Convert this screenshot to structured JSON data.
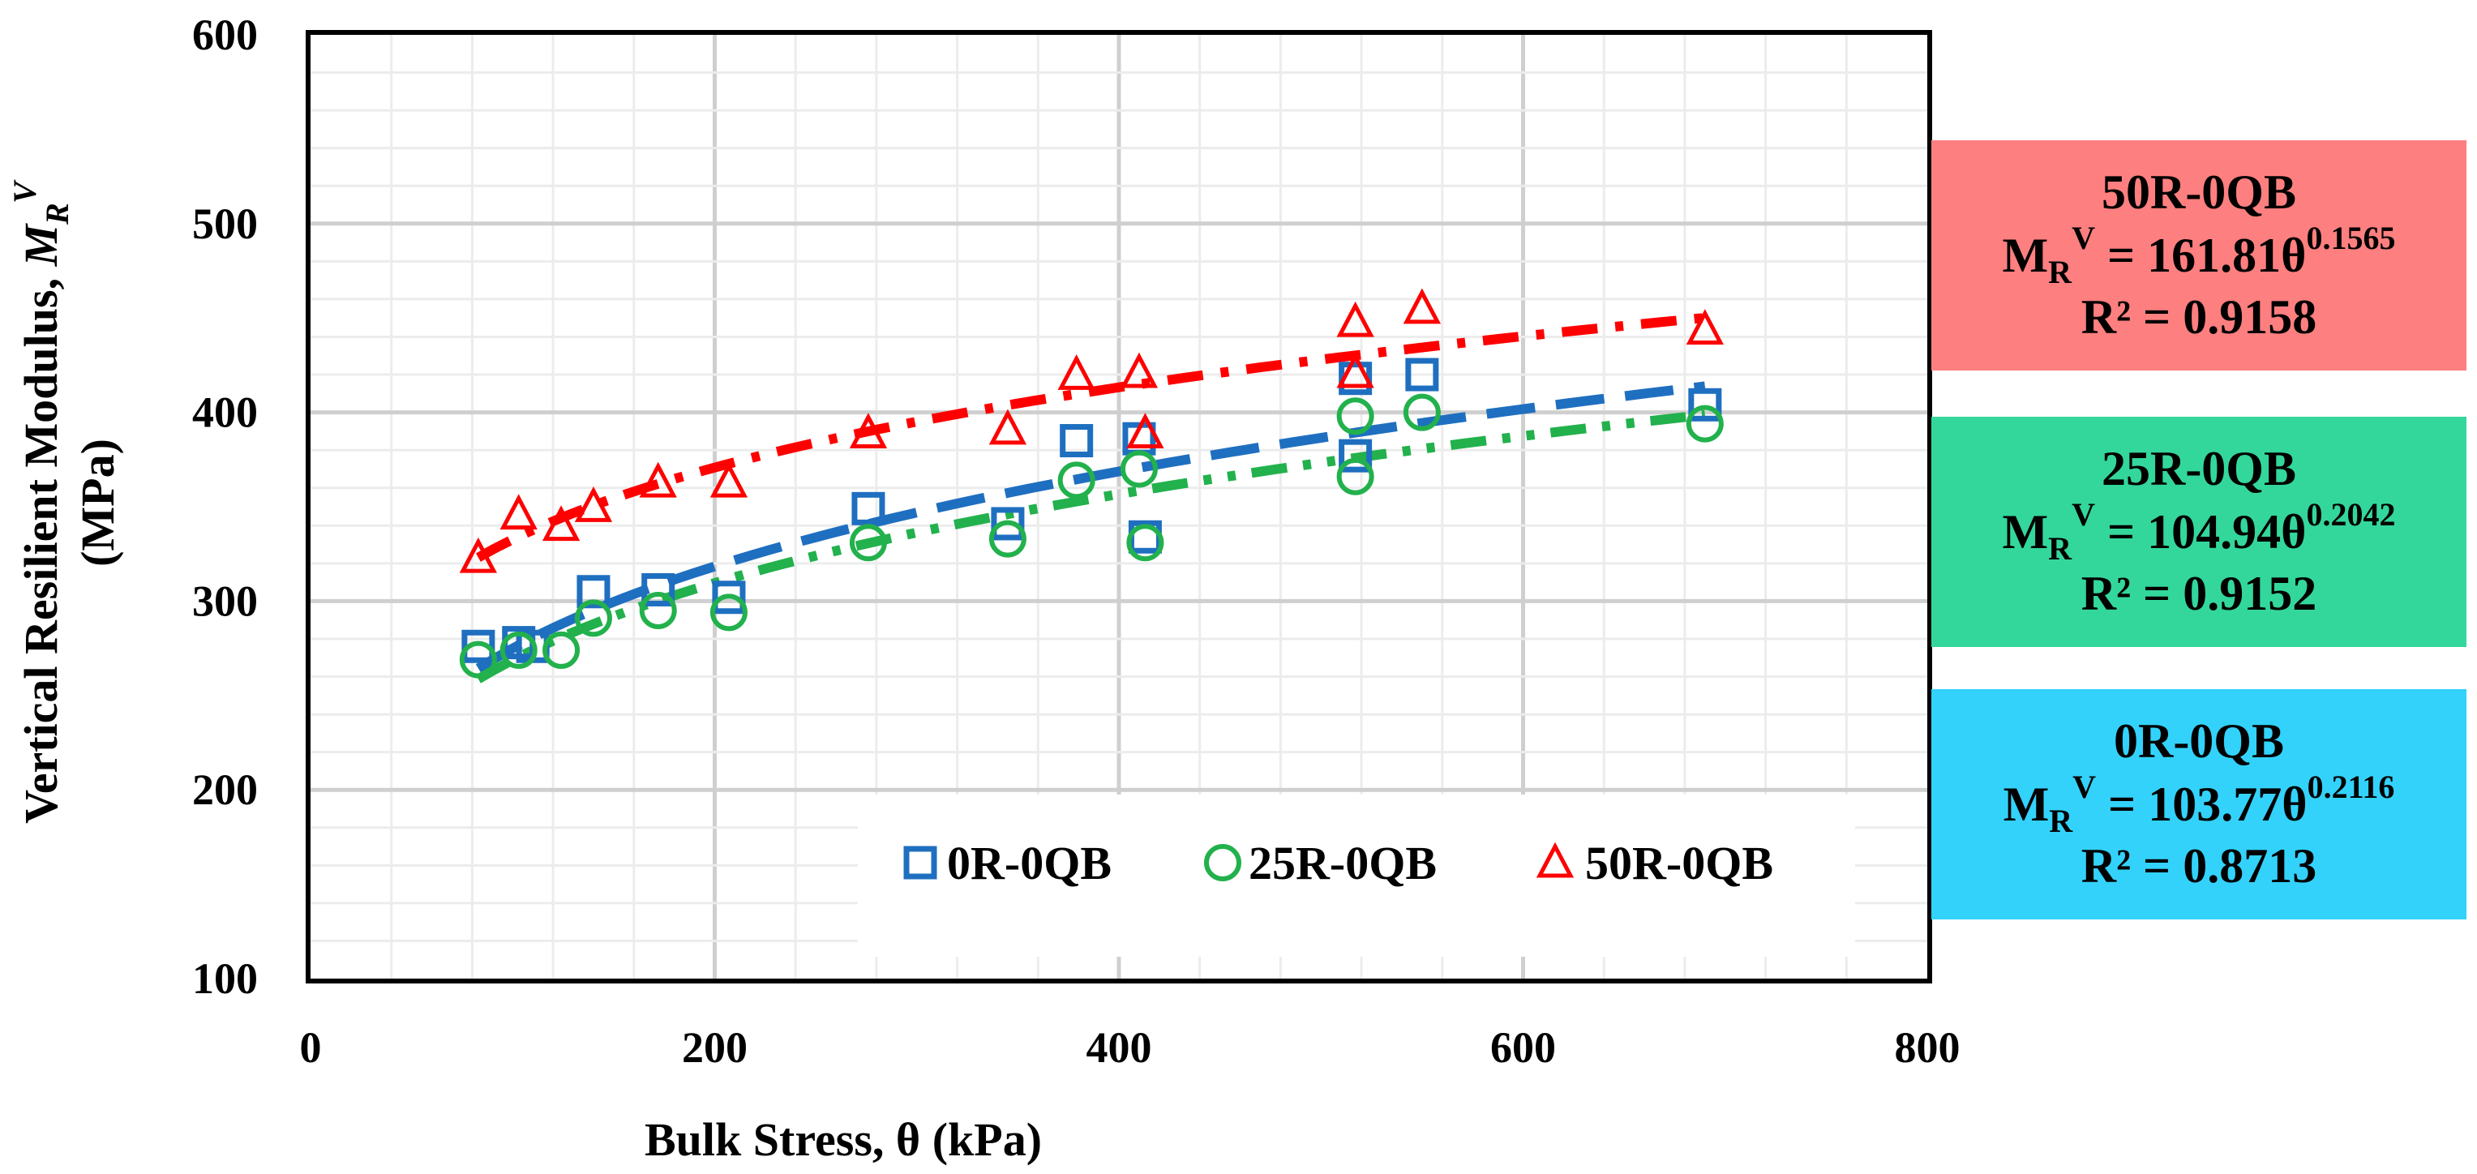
{
  "chart_data": {
    "type": "scatter",
    "xlabel": "Bulk Stress, θ (kPa)",
    "ylabel_main": "Vertical Resilient Modulus, ",
    "ylabel_symbol": "M",
    "ylabel_sub": "R",
    "ylabel_sup": "V",
    "ylabel_units": "(MPa)",
    "xlim": [
      0,
      800
    ],
    "ylim": [
      100,
      600
    ],
    "xticks": [
      0,
      200,
      400,
      600,
      800
    ],
    "yticks": [
      100,
      200,
      300,
      400,
      500,
      600
    ],
    "x_minor_step": 40,
    "y_minor_step": 20,
    "legend_position": "bottom-center",
    "series": [
      {
        "name": "0R-0QB",
        "color": "#1f6fc0",
        "marker": "square",
        "trend": {
          "a": 103.77,
          "b": 0.2116,
          "dash": "dash",
          "xmin": 83,
          "xmax": 690
        },
        "points": [
          [
            83,
            276
          ],
          [
            103,
            278
          ],
          [
            110,
            276
          ],
          [
            140,
            305
          ],
          [
            172,
            306
          ],
          [
            207,
            302
          ],
          [
            276,
            349
          ],
          [
            345,
            341
          ],
          [
            379,
            385
          ],
          [
            410,
            386
          ],
          [
            413,
            334
          ],
          [
            517,
            418
          ],
          [
            517,
            377
          ],
          [
            550,
            420
          ],
          [
            690,
            404
          ]
        ]
      },
      {
        "name": "25R-0QB",
        "color": "#22b14c",
        "marker": "circle",
        "trend": {
          "a": 104.94,
          "b": 0.2042,
          "dash": "dashdotdot",
          "xmin": 83,
          "xmax": 690
        },
        "points": [
          [
            83,
            269
          ],
          [
            103,
            274
          ],
          [
            124,
            274
          ],
          [
            140,
            291
          ],
          [
            172,
            295
          ],
          [
            207,
            294
          ],
          [
            276,
            331
          ],
          [
            345,
            333
          ],
          [
            379,
            364
          ],
          [
            410,
            370
          ],
          [
            413,
            331
          ],
          [
            517,
            398
          ],
          [
            517,
            366
          ],
          [
            550,
            400
          ],
          [
            690,
            394
          ]
        ]
      },
      {
        "name": "50R-0QB",
        "color": "#ff0000",
        "marker": "triangle",
        "trend": {
          "a": 161.81,
          "b": 0.1565,
          "dash": "dashdot",
          "xmin": 83,
          "xmax": 690
        },
        "points": [
          [
            83,
            322
          ],
          [
            103,
            345
          ],
          [
            124,
            339
          ],
          [
            140,
            349
          ],
          [
            172,
            362
          ],
          [
            207,
            362
          ],
          [
            276,
            388
          ],
          [
            345,
            390
          ],
          [
            379,
            419
          ],
          [
            410,
            420
          ],
          [
            413,
            388
          ],
          [
            517,
            447
          ],
          [
            517,
            420
          ],
          [
            550,
            454
          ],
          [
            690,
            443
          ]
        ]
      }
    ]
  },
  "equations": [
    {
      "name": "50R-0QB",
      "lhs": "M",
      "sub": "R",
      "sup": "V",
      "coef": " = 161.81θ",
      "exp": "0.1565",
      "r2": "R² = 0.9158",
      "bg": "#fe7f7f"
    },
    {
      "name": "25R-0QB",
      "lhs": "M",
      "sub": "R",
      "sup": "V",
      "coef": " = 104.94θ",
      "exp": "0.2042",
      "r2": "R² = 0.9152",
      "bg": "#33d79b"
    },
    {
      "name": "0R-0QB",
      "lhs": "M",
      "sub": "R",
      "sup": "V",
      "coef": " = 103.77θ",
      "exp": "0.2116",
      "r2": "R² = 0.8713",
      "bg": "#33d2fb"
    }
  ]
}
